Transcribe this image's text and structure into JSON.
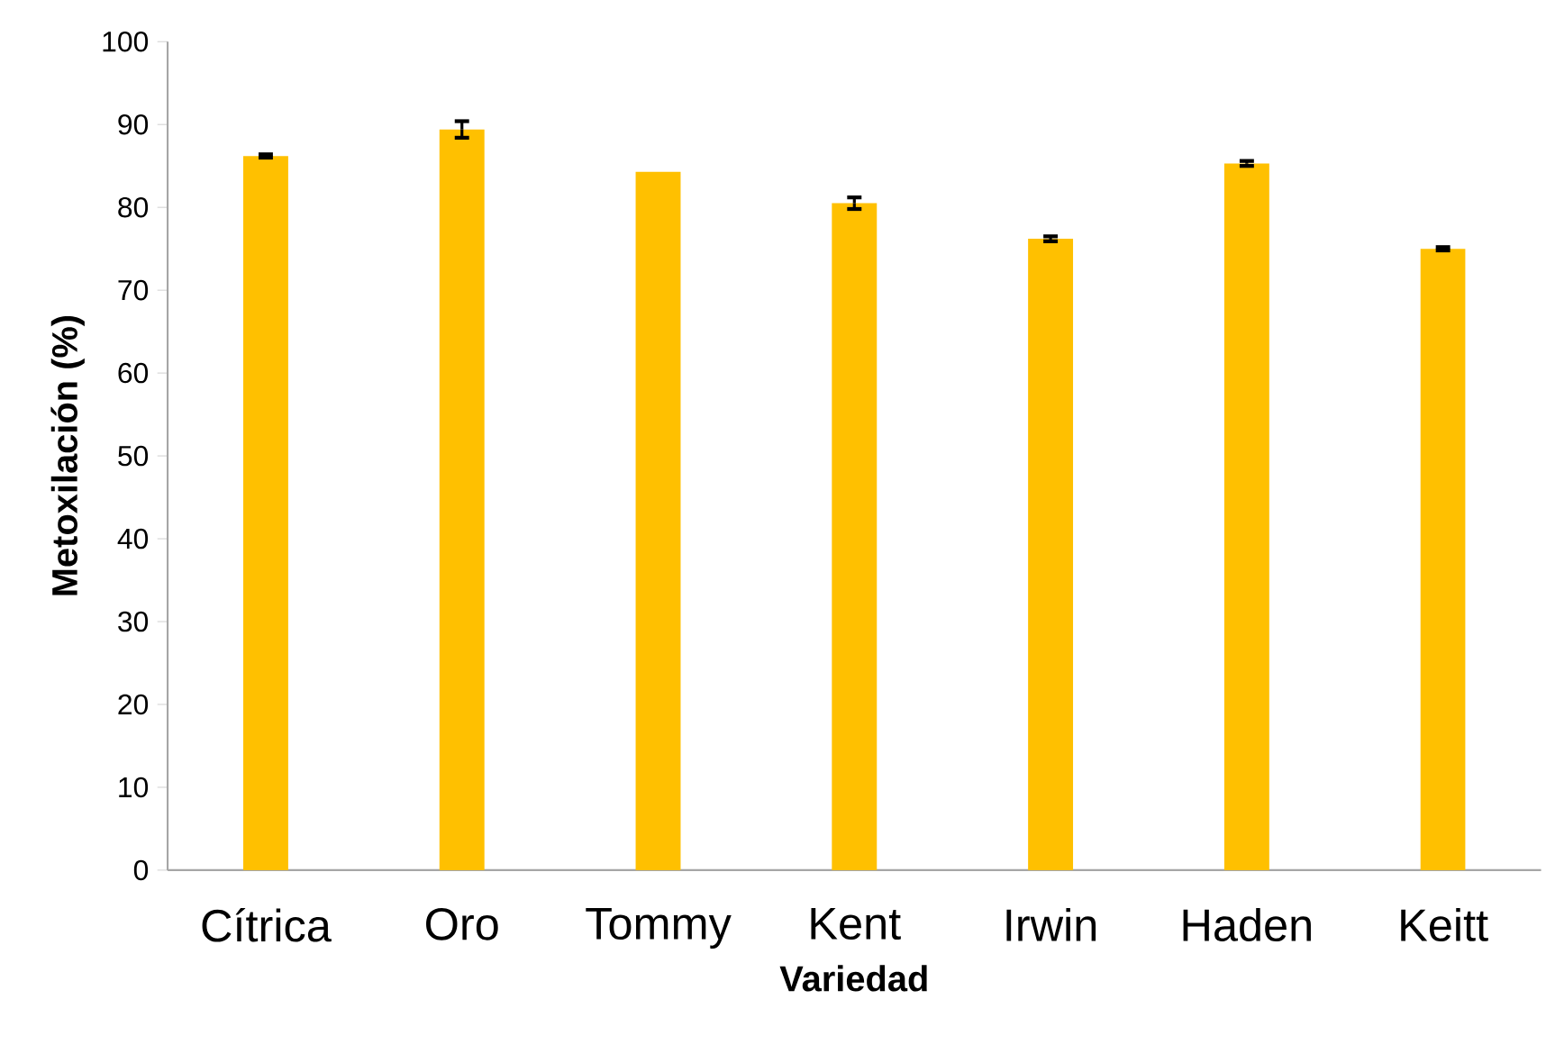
{
  "chart_data": {
    "type": "bar",
    "xlabel": "Variedad",
    "ylabel": "Metoxilación (%)",
    "categories": [
      "Cítrica",
      "Oro",
      "Tommy",
      "Kent",
      "Irwin",
      "Haden",
      "Keitt"
    ],
    "values": [
      86.2,
      89.4,
      84.3,
      80.5,
      76.2,
      85.3,
      75.0
    ],
    "errors": [
      0.2,
      1.0,
      null,
      0.7,
      0.3,
      0.3,
      0.2
    ],
    "color": "#ffc000",
    "ylim": [
      0,
      100
    ],
    "yticks": [
      0,
      10,
      20,
      30,
      40,
      50,
      60,
      70,
      80,
      90,
      100
    ],
    "grid": false
  }
}
